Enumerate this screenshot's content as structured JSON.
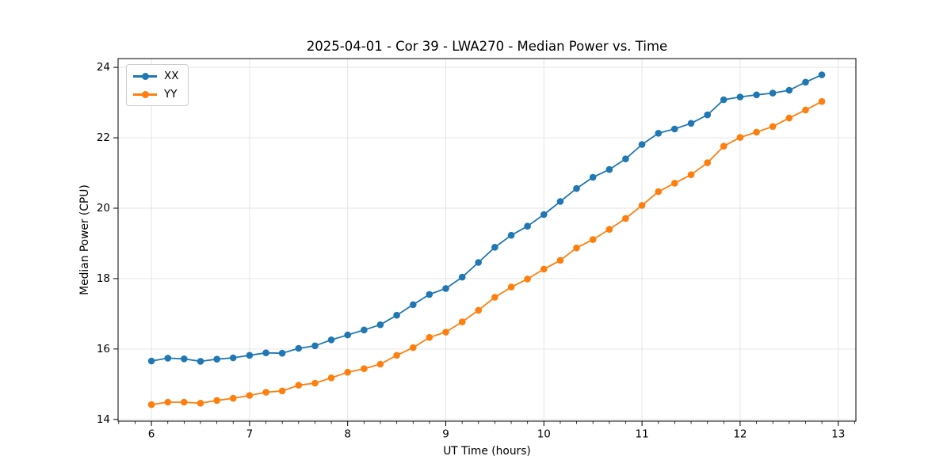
{
  "chart_data": {
    "type": "line",
    "title": "2025-04-01 - Cor 39 - LWA270 - Median Power vs. Time",
    "xlabel": "UT Time (hours)",
    "ylabel": "Median Power (CPU)",
    "xlim": [
      5.66,
      13.18
    ],
    "ylim": [
      13.95,
      24.25
    ],
    "xticks": [
      6,
      7,
      8,
      9,
      10,
      11,
      12,
      13
    ],
    "yticks": [
      14,
      16,
      18,
      20,
      22,
      24
    ],
    "x_minor_step": 0.16667,
    "grid": true,
    "grid_color": "#e5e5e5",
    "axis_color": "#000000",
    "legend_position": "upper-left",
    "x": [
      6.0,
      6.167,
      6.333,
      6.5,
      6.667,
      6.833,
      7.0,
      7.167,
      7.333,
      7.5,
      7.667,
      7.833,
      8.0,
      8.167,
      8.333,
      8.5,
      8.667,
      8.833,
      9.0,
      9.167,
      9.333,
      9.5,
      9.667,
      9.833,
      10.0,
      10.167,
      10.333,
      10.5,
      10.667,
      10.833,
      11.0,
      11.167,
      11.333,
      11.5,
      11.667,
      11.833,
      12.0,
      12.167,
      12.333,
      12.5,
      12.667,
      12.833
    ],
    "series": [
      {
        "name": "XX",
        "color": "#1f77b4",
        "marker": "circle",
        "values": [
          15.66,
          15.74,
          15.72,
          15.65,
          15.71,
          15.75,
          15.82,
          15.89,
          15.88,
          16.02,
          16.09,
          16.26,
          16.4,
          16.54,
          16.69,
          16.96,
          17.26,
          17.55,
          17.72,
          18.04,
          18.46,
          18.89,
          19.23,
          19.49,
          19.82,
          20.19,
          20.56,
          20.88,
          21.1,
          21.4,
          21.81,
          22.13,
          22.25,
          22.41,
          22.65,
          23.08,
          23.16,
          23.22,
          23.27,
          23.35,
          23.58,
          23.79
        ]
      },
      {
        "name": "YY",
        "color": "#ff7f0e",
        "marker": "circle",
        "values": [
          14.42,
          14.49,
          14.49,
          14.46,
          14.54,
          14.6,
          14.68,
          14.77,
          14.81,
          14.97,
          15.03,
          15.18,
          15.34,
          15.44,
          15.57,
          15.82,
          16.04,
          16.33,
          16.48,
          16.77,
          17.1,
          17.47,
          17.76,
          17.99,
          18.27,
          18.52,
          18.87,
          19.11,
          19.4,
          19.71,
          20.08,
          20.47,
          20.71,
          20.95,
          21.29,
          21.76,
          22.01,
          22.16,
          22.32,
          22.56,
          22.79,
          23.03
        ]
      }
    ]
  }
}
